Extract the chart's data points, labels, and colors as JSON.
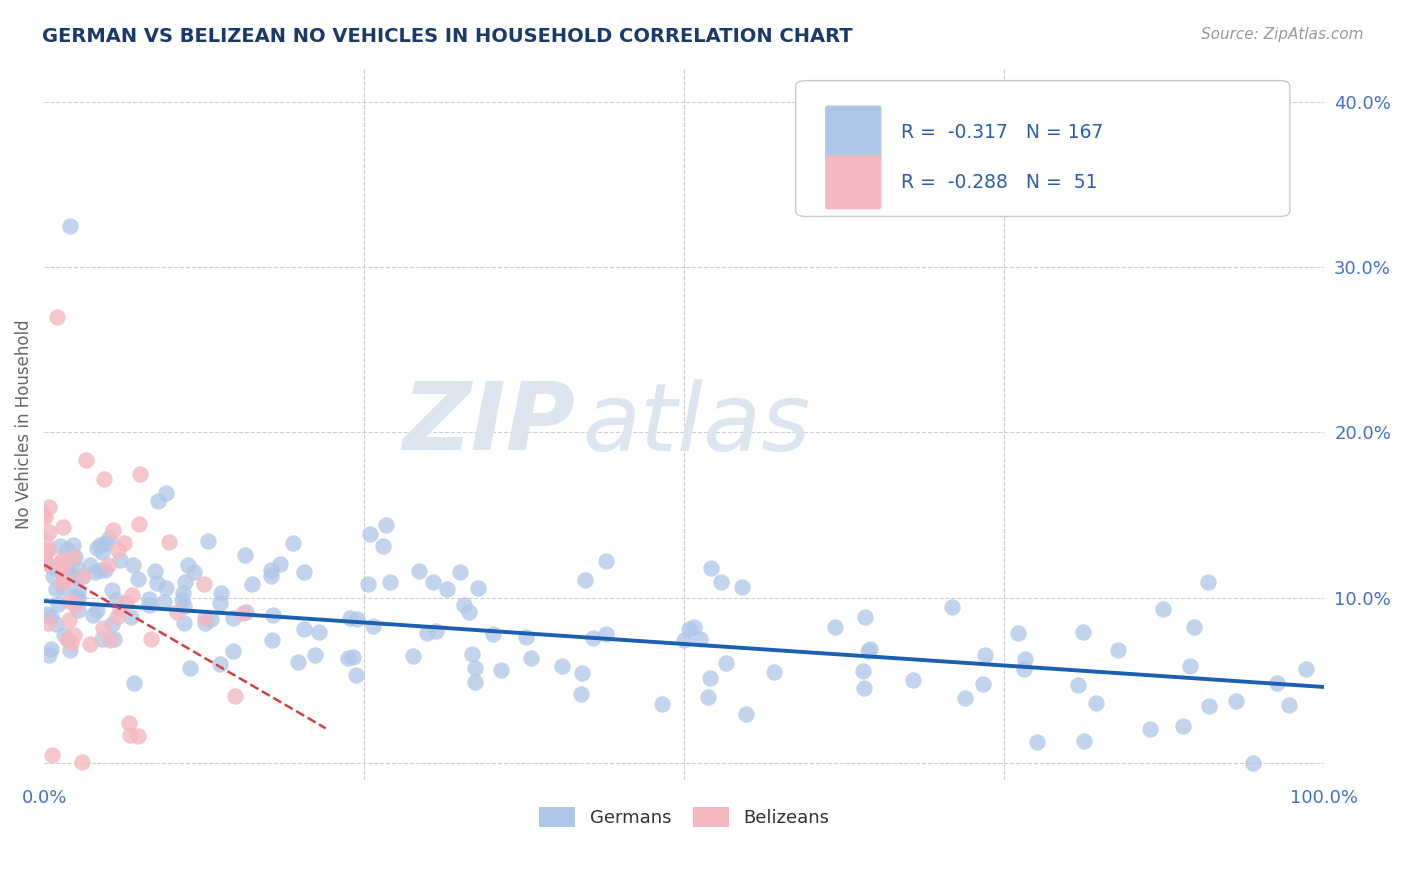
{
  "title": "GERMAN VS BELIZEAN NO VEHICLES IN HOUSEHOLD CORRELATION CHART",
  "source": "Source: ZipAtlas.com",
  "ylabel": "No Vehicles in Household",
  "xlim": [
    0.0,
    1.0
  ],
  "ylim": [
    -0.01,
    0.42
  ],
  "y_ticks": [
    0.0,
    0.1,
    0.2,
    0.3,
    0.4
  ],
  "y_tick_labels_right": [
    "",
    "10.0%",
    "20.0%",
    "30.0%",
    "40.0%"
  ],
  "german_color": "#aec6e8",
  "belizean_color": "#f4b8c1",
  "german_line_color": "#1a5fb0",
  "belizean_line_color": "#d44040",
  "watermark_color": "#dce5f0",
  "R_german": -0.317,
  "N_german": 167,
  "R_belizean": -0.288,
  "N_belizean": 51,
  "legend_label_german": "Germans",
  "legend_label_belizean": "Belizeans",
  "title_color": "#1a3a6b",
  "axis_label_color": "#666666",
  "tick_color": "#4472c4",
  "grid_color": "#cccccc",
  "background_color": "#ffffff"
}
